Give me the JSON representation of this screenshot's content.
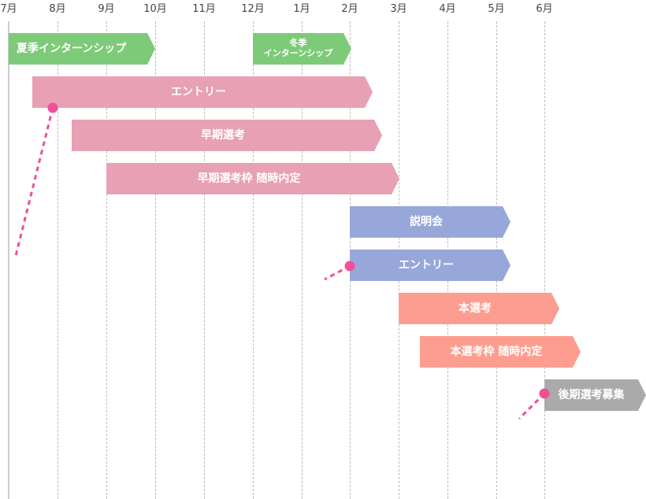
{
  "months": [
    "7月",
    "8月",
    "9月",
    "10月",
    "11月",
    "12月",
    "1月",
    "2月",
    "3月",
    "4月",
    "5月",
    "6月"
  ],
  "colors": {
    "internship": "#7dcb78",
    "early": "#e8a0b4",
    "main_prep": "#97a7da",
    "main": "#fc9d8f",
    "late": "#aaaaaa",
    "marker": "#f0509a"
  },
  "bars": [
    {
      "label": "夏季インターンシップ"
    },
    {
      "label": "冬季\nインターンシップ"
    },
    {
      "label": "エントリー"
    },
    {
      "label": "早期選考"
    },
    {
      "label": "早期選考枠 随時内定"
    },
    {
      "label": "説明会"
    },
    {
      "label": "エントリー"
    },
    {
      "label": "本選考"
    },
    {
      "label": "本選考枠 随時内定"
    },
    {
      "label": "後期選考募集"
    }
  ]
}
